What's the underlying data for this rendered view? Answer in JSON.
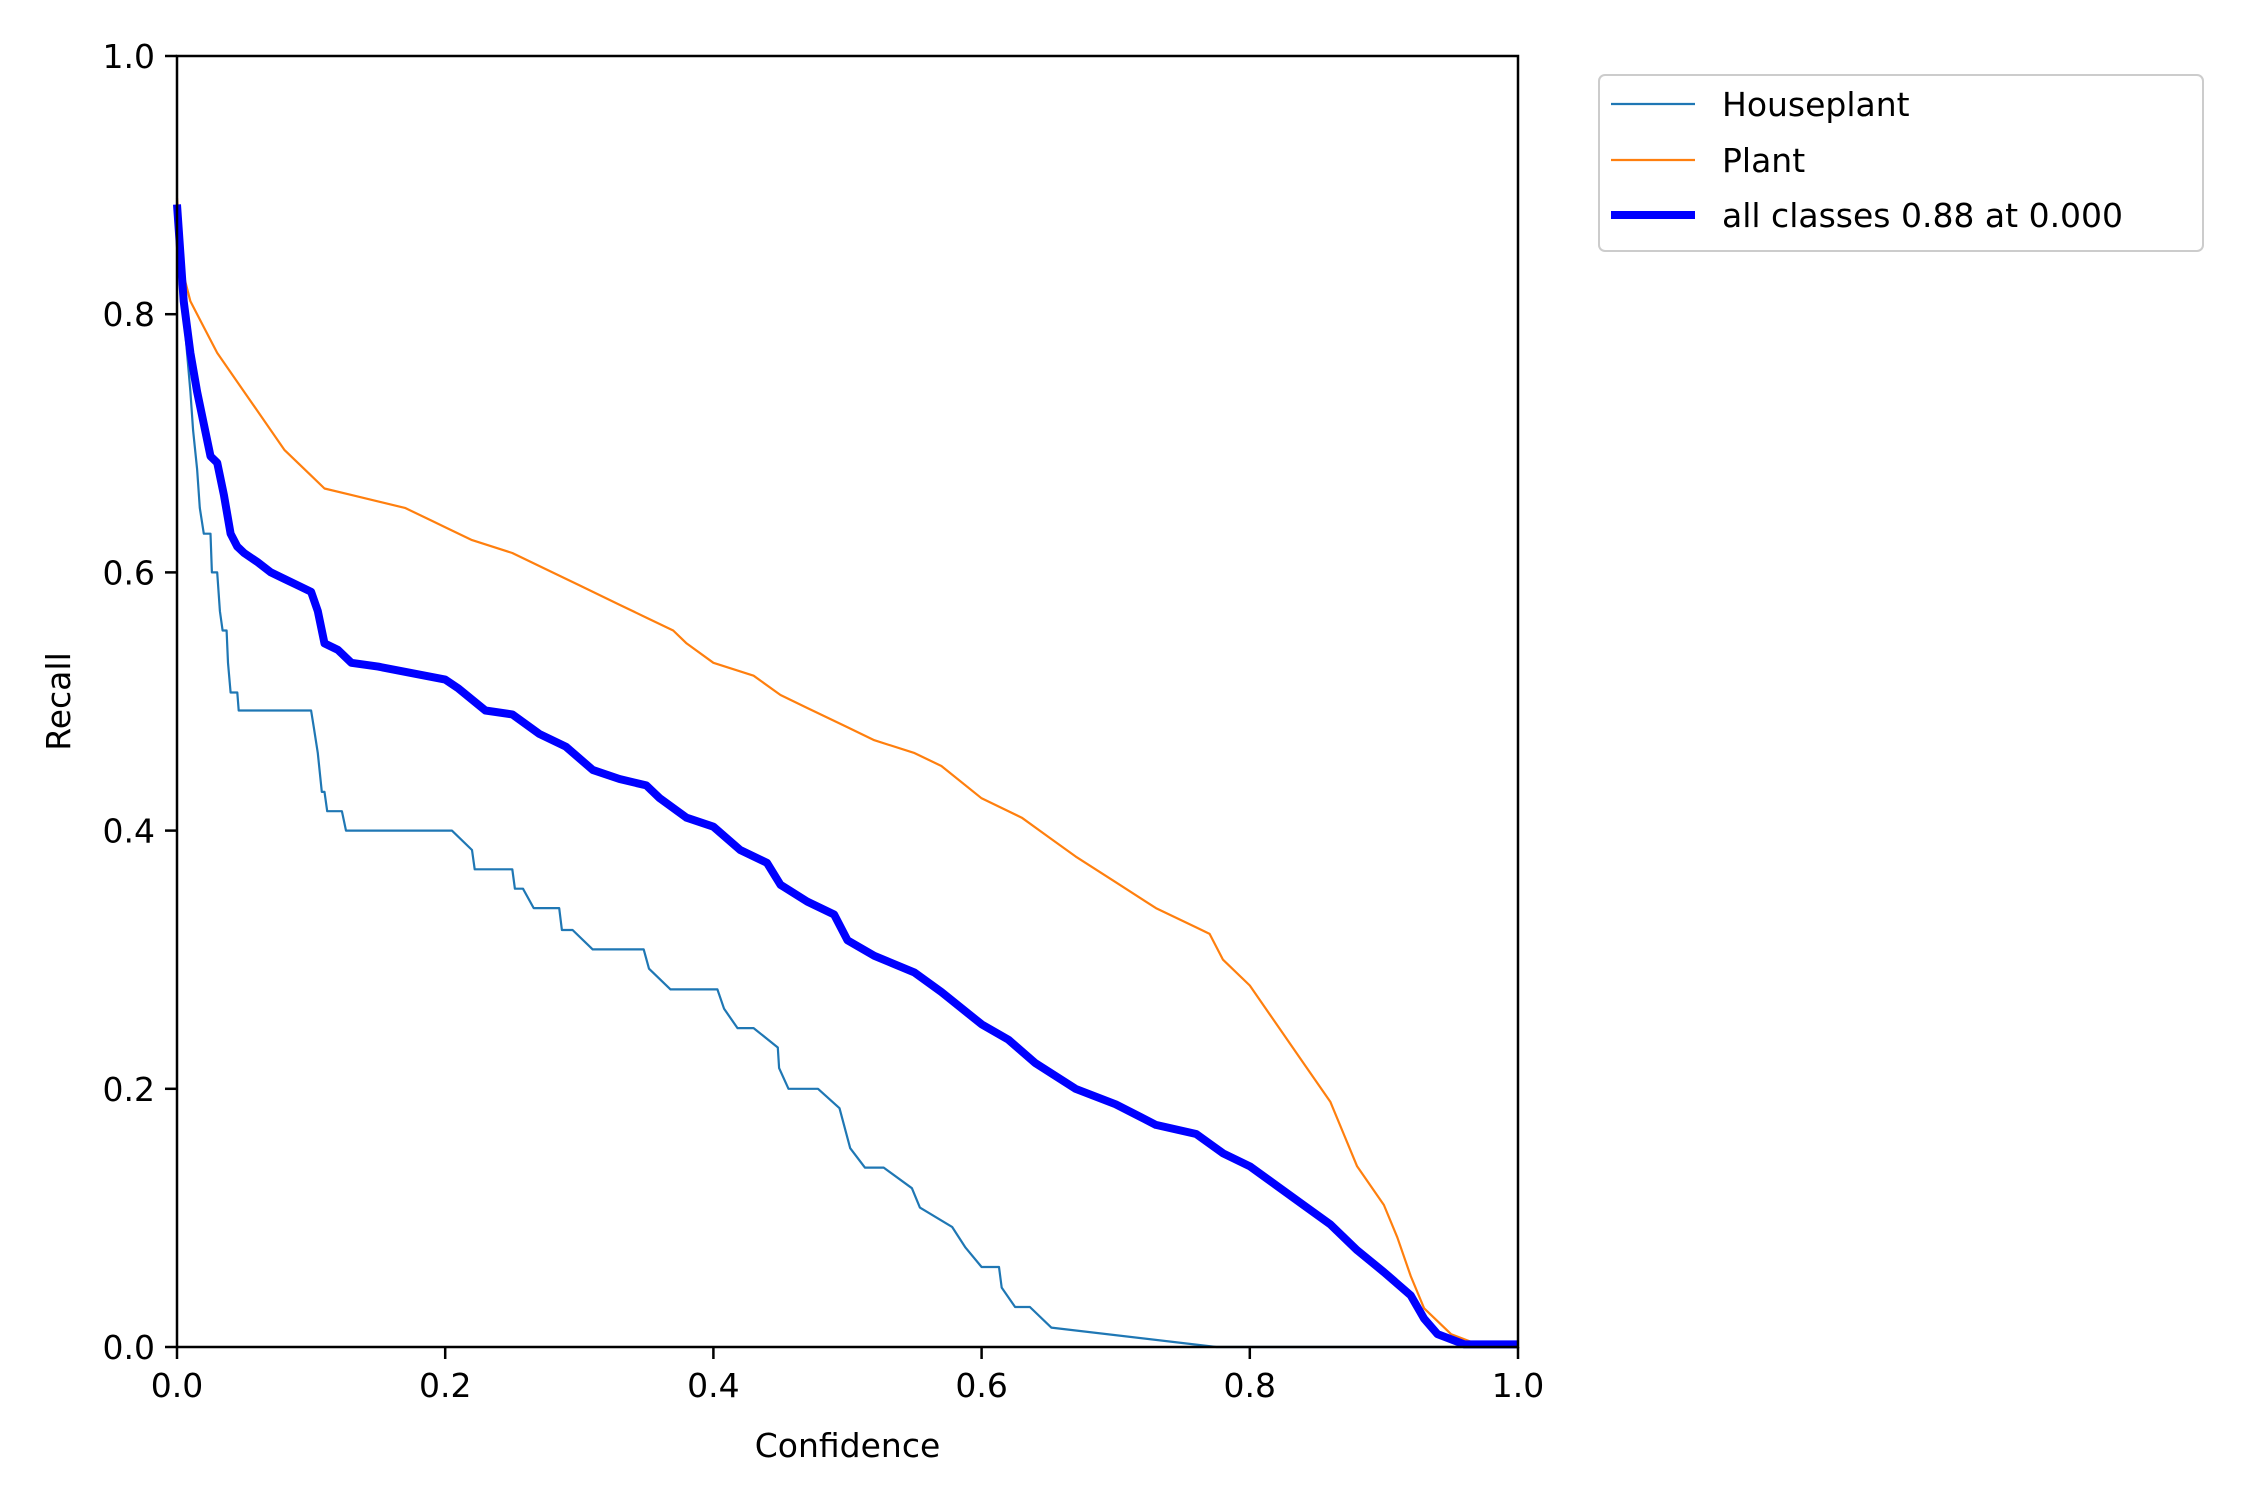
{
  "chart_data": {
    "type": "line",
    "xlabel": "Confidence",
    "ylabel": "Recall",
    "xlim": [
      0,
      1
    ],
    "ylim": [
      0,
      1
    ],
    "xticks": [
      "0.0",
      "0.2",
      "0.4",
      "0.6",
      "0.8",
      "1.0"
    ],
    "yticks": [
      "0.0",
      "0.2",
      "0.4",
      "0.6",
      "0.8",
      "1.0"
    ],
    "grid": false,
    "legend_position": "outside top-right",
    "series": [
      {
        "name": "Houseplant",
        "color": "#1f77b4",
        "width": "thin",
        "x": [
          0,
          0.005,
          0.01,
          0.012,
          0.015,
          0.017,
          0.02,
          0.025,
          0.026,
          0.03,
          0.032,
          0.034,
          0.037,
          0.038,
          0.04,
          0.045,
          0.046,
          0.1,
          0.102,
          0.105,
          0.108,
          0.11,
          0.112,
          0.123,
          0.126,
          0.205,
          0.22,
          0.222,
          0.25,
          0.252,
          0.258,
          0.266,
          0.285,
          0.287,
          0.295,
          0.31,
          0.348,
          0.352,
          0.368,
          0.403,
          0.408,
          0.418,
          0.43,
          0.448,
          0.449,
          0.456,
          0.478,
          0.494,
          0.502,
          0.513,
          0.527,
          0.548,
          0.554,
          0.578,
          0.588,
          0.6,
          0.613,
          0.615,
          0.625,
          0.636,
          0.652,
          0.775,
          1.0
        ],
        "y": [
          0.87,
          0.8,
          0.74,
          0.71,
          0.68,
          0.65,
          0.63,
          0.63,
          0.6,
          0.6,
          0.57,
          0.555,
          0.555,
          0.53,
          0.507,
          0.507,
          0.493,
          0.493,
          0.48,
          0.46,
          0.43,
          0.43,
          0.415,
          0.415,
          0.4,
          0.4,
          0.385,
          0.37,
          0.37,
          0.355,
          0.355,
          0.34,
          0.34,
          0.323,
          0.323,
          0.308,
          0.308,
          0.293,
          0.277,
          0.277,
          0.262,
          0.247,
          0.247,
          0.232,
          0.216,
          0.2,
          0.2,
          0.185,
          0.154,
          0.139,
          0.139,
          0.123,
          0.108,
          0.093,
          0.077,
          0.062,
          0.062,
          0.046,
          0.031,
          0.031,
          0.015,
          0,
          0
        ]
      },
      {
        "name": "Plant",
        "color": "#ff7f0e",
        "width": "thin",
        "x": [
          0,
          0.005,
          0.01,
          0.02,
          0.03,
          0.04,
          0.05,
          0.06,
          0.07,
          0.08,
          0.09,
          0.1,
          0.11,
          0.13,
          0.15,
          0.17,
          0.19,
          0.2,
          0.22,
          0.25,
          0.28,
          0.3,
          0.33,
          0.35,
          0.37,
          0.38,
          0.4,
          0.43,
          0.45,
          0.47,
          0.5,
          0.52,
          0.55,
          0.57,
          0.6,
          0.63,
          0.65,
          0.67,
          0.7,
          0.73,
          0.76,
          0.77,
          0.78,
          0.8,
          0.82,
          0.84,
          0.86,
          0.87,
          0.88,
          0.9,
          0.91,
          0.92,
          0.93,
          0.95,
          0.97,
          1.0
        ],
        "y": [
          0.89,
          0.83,
          0.81,
          0.79,
          0.77,
          0.755,
          0.74,
          0.725,
          0.71,
          0.695,
          0.685,
          0.675,
          0.665,
          0.66,
          0.655,
          0.65,
          0.64,
          0.635,
          0.625,
          0.615,
          0.6,
          0.59,
          0.575,
          0.565,
          0.555,
          0.545,
          0.53,
          0.52,
          0.505,
          0.495,
          0.48,
          0.47,
          0.46,
          0.45,
          0.425,
          0.41,
          0.395,
          0.38,
          0.36,
          0.34,
          0.325,
          0.32,
          0.3,
          0.28,
          0.25,
          0.22,
          0.19,
          0.165,
          0.14,
          0.11,
          0.085,
          0.055,
          0.03,
          0.01,
          0.002,
          0.002
        ]
      },
      {
        "name": "all classes 0.88 at 0.000",
        "color": "#0000ff",
        "width": "thick",
        "x": [
          0,
          0.005,
          0.01,
          0.015,
          0.02,
          0.025,
          0.03,
          0.035,
          0.04,
          0.045,
          0.05,
          0.06,
          0.07,
          0.08,
          0.09,
          0.1,
          0.105,
          0.11,
          0.12,
          0.13,
          0.15,
          0.17,
          0.2,
          0.21,
          0.23,
          0.25,
          0.27,
          0.29,
          0.31,
          0.33,
          0.35,
          0.36,
          0.38,
          0.4,
          0.42,
          0.44,
          0.45,
          0.47,
          0.49,
          0.5,
          0.52,
          0.55,
          0.57,
          0.6,
          0.62,
          0.64,
          0.67,
          0.7,
          0.73,
          0.76,
          0.78,
          0.8,
          0.82,
          0.84,
          0.86,
          0.88,
          0.9,
          0.92,
          0.93,
          0.94,
          0.96,
          1.0
        ],
        "y": [
          0.885,
          0.81,
          0.77,
          0.74,
          0.715,
          0.69,
          0.685,
          0.66,
          0.63,
          0.62,
          0.615,
          0.608,
          0.6,
          0.595,
          0.59,
          0.585,
          0.57,
          0.545,
          0.54,
          0.53,
          0.527,
          0.523,
          0.517,
          0.51,
          0.493,
          0.49,
          0.475,
          0.465,
          0.447,
          0.44,
          0.435,
          0.425,
          0.41,
          0.403,
          0.385,
          0.375,
          0.358,
          0.345,
          0.335,
          0.315,
          0.303,
          0.29,
          0.275,
          0.25,
          0.238,
          0.22,
          0.2,
          0.188,
          0.172,
          0.165,
          0.15,
          0.14,
          0.125,
          0.11,
          0.095,
          0.075,
          0.058,
          0.04,
          0.022,
          0.01,
          0.002,
          0.002
        ]
      }
    ]
  }
}
